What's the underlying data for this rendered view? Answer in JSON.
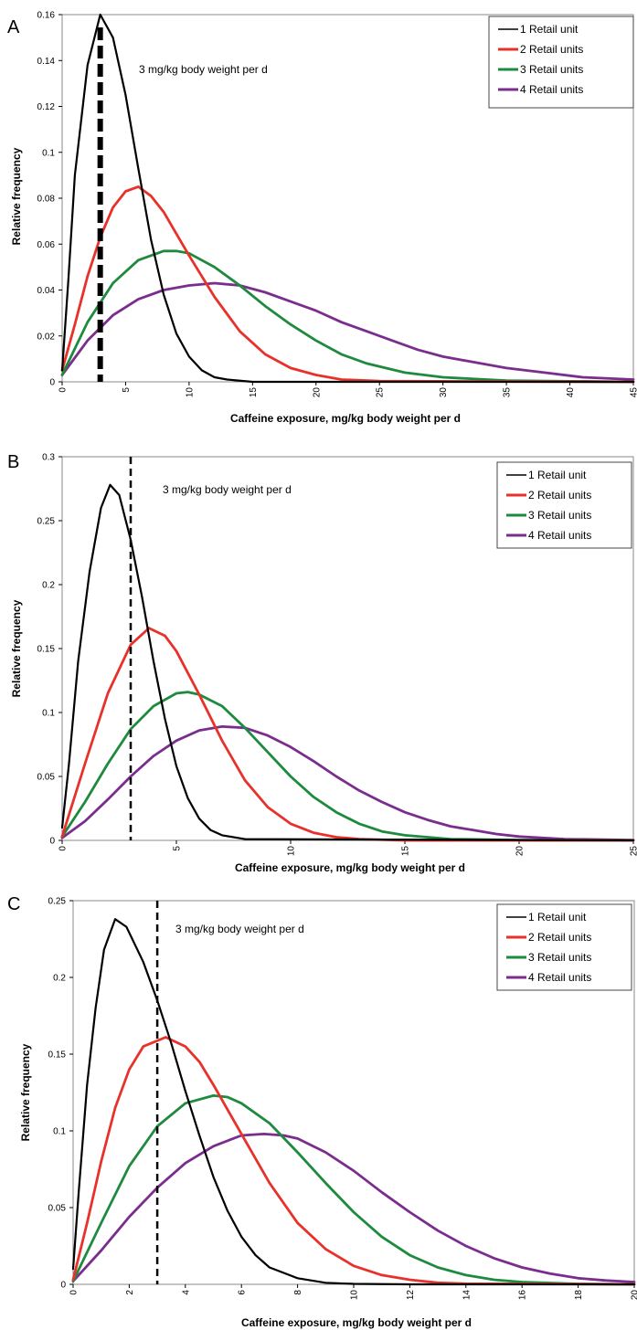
{
  "chart_data": [
    {
      "type": "line",
      "panel_label": "A",
      "ylabel": "Relative frequency",
      "xlabel": "Caffeine exposure, mg/kg body weight per d",
      "xlim": [
        0,
        45
      ],
      "ylim": [
        0,
        0.16
      ],
      "xticks": [
        "0",
        "5",
        "10",
        "15",
        "20",
        "25",
        "30",
        "35",
        "40",
        "45"
      ],
      "yticks": [
        "0",
        "0.02",
        "0.04",
        "0.06",
        "0.08",
        "0.1",
        "0.12",
        "0.14",
        "0.16"
      ],
      "grid": false,
      "legend_position": "top-right",
      "annotation": "3 mg/kg body weight per d",
      "reference_line_x": 3,
      "series": [
        {
          "name": "1 Retail unit",
          "color": "#000000",
          "points": [
            [
              0,
              0.005
            ],
            [
              0.5,
              0.045
            ],
            [
              1,
              0.09
            ],
            [
              2,
              0.138
            ],
            [
              3,
              0.16
            ],
            [
              4,
              0.15
            ],
            [
              5,
              0.125
            ],
            [
              6,
              0.093
            ],
            [
              7,
              0.062
            ],
            [
              8,
              0.038
            ],
            [
              9,
              0.021
            ],
            [
              10,
              0.011
            ],
            [
              11,
              0.005
            ],
            [
              12,
              0.002
            ],
            [
              13,
              0.001
            ],
            [
              15,
              0
            ],
            [
              45,
              0
            ]
          ]
        },
        {
          "name": "2 Retail units",
          "color": "#e8312a",
          "points": [
            [
              0,
              0.005
            ],
            [
              1,
              0.025
            ],
            [
              2,
              0.046
            ],
            [
              3,
              0.063
            ],
            [
              4,
              0.076
            ],
            [
              5,
              0.083
            ],
            [
              6,
              0.085
            ],
            [
              7,
              0.081
            ],
            [
              8,
              0.074
            ],
            [
              10,
              0.055
            ],
            [
              12,
              0.037
            ],
            [
              14,
              0.022
            ],
            [
              16,
              0.012
            ],
            [
              18,
              0.006
            ],
            [
              20,
              0.003
            ],
            [
              22,
              0.001
            ],
            [
              25,
              0.0003
            ],
            [
              45,
              0
            ]
          ]
        },
        {
          "name": "3 Retail units",
          "color": "#1e8a3e",
          "points": [
            [
              0,
              0.003
            ],
            [
              2,
              0.026
            ],
            [
              4,
              0.043
            ],
            [
              6,
              0.053
            ],
            [
              8,
              0.057
            ],
            [
              9,
              0.057
            ],
            [
              10,
              0.056
            ],
            [
              12,
              0.05
            ],
            [
              14,
              0.042
            ],
            [
              16,
              0.033
            ],
            [
              18,
              0.025
            ],
            [
              20,
              0.018
            ],
            [
              22,
              0.012
            ],
            [
              24,
              0.008
            ],
            [
              27,
              0.004
            ],
            [
              30,
              0.002
            ],
            [
              35,
              0.0005
            ],
            [
              45,
              0
            ]
          ]
        },
        {
          "name": "4 Retail units",
          "color": "#7b2d8e",
          "points": [
            [
              0,
              0.003
            ],
            [
              2,
              0.018
            ],
            [
              4,
              0.029
            ],
            [
              6,
              0.036
            ],
            [
              8,
              0.04
            ],
            [
              10,
              0.042
            ],
            [
              12,
              0.043
            ],
            [
              14,
              0.042
            ],
            [
              16,
              0.039
            ],
            [
              18,
              0.035
            ],
            [
              20,
              0.031
            ],
            [
              22,
              0.026
            ],
            [
              24,
              0.022
            ],
            [
              26,
              0.018
            ],
            [
              28,
              0.014
            ],
            [
              30,
              0.011
            ],
            [
              32,
              0.009
            ],
            [
              35,
              0.006
            ],
            [
              38,
              0.004
            ],
            [
              41,
              0.002
            ],
            [
              45,
              0.001
            ]
          ]
        }
      ]
    },
    {
      "type": "line",
      "panel_label": "B",
      "ylabel": "Relative frequency",
      "xlabel": "Caffeine exposure, mg/kg body weight per d",
      "xlim": [
        0,
        25
      ],
      "ylim": [
        0,
        0.3
      ],
      "xticks": [
        "0",
        "5",
        "10",
        "15",
        "20",
        "25"
      ],
      "yticks": [
        "0",
        "0.05",
        "0.1",
        "0.15",
        "0.2",
        "0.25",
        "0.3"
      ],
      "grid": false,
      "legend_position": "top-right",
      "annotation": "3 mg/kg body weight per d",
      "reference_line_x": 3,
      "series": [
        {
          "name": "1 Retail unit",
          "color": "#000000",
          "points": [
            [
              0,
              0.01
            ],
            [
              0.3,
              0.06
            ],
            [
              0.7,
              0.14
            ],
            [
              1.2,
              0.21
            ],
            [
              1.7,
              0.26
            ],
            [
              2.1,
              0.278
            ],
            [
              2.5,
              0.27
            ],
            [
              3,
              0.235
            ],
            [
              3.5,
              0.19
            ],
            [
              4,
              0.14
            ],
            [
              4.5,
              0.095
            ],
            [
              5,
              0.058
            ],
            [
              5.5,
              0.033
            ],
            [
              6,
              0.017
            ],
            [
              6.5,
              0.008
            ],
            [
              7,
              0.004
            ],
            [
              8,
              0.001
            ],
            [
              25,
              0
            ]
          ]
        },
        {
          "name": "2 Retail units",
          "color": "#e8312a",
          "points": [
            [
              0,
              0.003
            ],
            [
              1,
              0.06
            ],
            [
              2,
              0.115
            ],
            [
              3,
              0.153
            ],
            [
              3.8,
              0.166
            ],
            [
              4.5,
              0.16
            ],
            [
              5,
              0.148
            ],
            [
              6,
              0.114
            ],
            [
              7,
              0.078
            ],
            [
              8,
              0.047
            ],
            [
              9,
              0.026
            ],
            [
              10,
              0.013
            ],
            [
              11,
              0.006
            ],
            [
              12,
              0.0025
            ],
            [
              13,
              0.001
            ],
            [
              15,
              0
            ],
            [
              25,
              0
            ]
          ]
        },
        {
          "name": "3 Retail units",
          "color": "#1e8a3e",
          "points": [
            [
              0,
              0.003
            ],
            [
              1,
              0.03
            ],
            [
              2,
              0.06
            ],
            [
              3,
              0.087
            ],
            [
              4,
              0.105
            ],
            [
              5,
              0.115
            ],
            [
              5.5,
              0.116
            ],
            [
              6,
              0.114
            ],
            [
              7,
              0.105
            ],
            [
              8,
              0.088
            ],
            [
              9,
              0.069
            ],
            [
              10,
              0.05
            ],
            [
              11,
              0.034
            ],
            [
              12,
              0.022
            ],
            [
              13,
              0.013
            ],
            [
              14,
              0.007
            ],
            [
              15,
              0.004
            ],
            [
              17,
              0.001
            ],
            [
              20,
              0.0002
            ],
            [
              25,
              0
            ]
          ]
        },
        {
          "name": "4 Retail units",
          "color": "#7b2d8e",
          "points": [
            [
              0,
              0.002
            ],
            [
              1,
              0.015
            ],
            [
              2,
              0.032
            ],
            [
              3,
              0.05
            ],
            [
              4,
              0.066
            ],
            [
              5,
              0.078
            ],
            [
              6,
              0.086
            ],
            [
              7,
              0.089
            ],
            [
              8,
              0.088
            ],
            [
              9,
              0.082
            ],
            [
              10,
              0.073
            ],
            [
              11,
              0.062
            ],
            [
              12,
              0.05
            ],
            [
              13,
              0.039
            ],
            [
              14,
              0.03
            ],
            [
              15,
              0.022
            ],
            [
              16,
              0.016
            ],
            [
              17,
              0.011
            ],
            [
              18,
              0.008
            ],
            [
              19,
              0.005
            ],
            [
              20,
              0.003
            ],
            [
              22,
              0.001
            ],
            [
              25,
              0.0003
            ]
          ]
        }
      ]
    },
    {
      "type": "line",
      "panel_label": "C",
      "ylabel": "Relative frequency",
      "xlabel": "Caffeine exposure, mg/kg body weight per d",
      "xlim": [
        0,
        20
      ],
      "ylim": [
        0,
        0.25
      ],
      "xticks": [
        "0",
        "2",
        "4",
        "6",
        "8",
        "10",
        "12",
        "14",
        "16",
        "18",
        "20"
      ],
      "yticks": [
        "0",
        "0.05",
        "0.1",
        "0.15",
        "0.2",
        "0.25"
      ],
      "grid": false,
      "legend_position": "top-right",
      "annotation": "3 mg/kg body weight per d",
      "reference_line_x": 3,
      "series": [
        {
          "name": "1 Retail unit",
          "color": "#000000",
          "points": [
            [
              0,
              0.01
            ],
            [
              0.2,
              0.06
            ],
            [
              0.5,
              0.13
            ],
            [
              0.8,
              0.18
            ],
            [
              1.1,
              0.218
            ],
            [
              1.5,
              0.238
            ],
            [
              1.9,
              0.233
            ],
            [
              2.5,
              0.21
            ],
            [
              3,
              0.185
            ],
            [
              3.5,
              0.157
            ],
            [
              4,
              0.126
            ],
            [
              4.5,
              0.097
            ],
            [
              5,
              0.07
            ],
            [
              5.5,
              0.048
            ],
            [
              6,
              0.031
            ],
            [
              6.5,
              0.019
            ],
            [
              7,
              0.011
            ],
            [
              8,
              0.004
            ],
            [
              9,
              0.001
            ],
            [
              10,
              0.0003
            ],
            [
              12,
              0
            ],
            [
              20,
              0
            ]
          ]
        },
        {
          "name": "2 Retail units",
          "color": "#e8312a",
          "points": [
            [
              0,
              0.003
            ],
            [
              0.5,
              0.04
            ],
            [
              1,
              0.08
            ],
            [
              1.5,
              0.115
            ],
            [
              2,
              0.14
            ],
            [
              2.5,
              0.155
            ],
            [
              3.3,
              0.161
            ],
            [
              4,
              0.155
            ],
            [
              4.5,
              0.145
            ],
            [
              5,
              0.13
            ],
            [
              6,
              0.098
            ],
            [
              7,
              0.066
            ],
            [
              8,
              0.04
            ],
            [
              9,
              0.023
            ],
            [
              10,
              0.012
            ],
            [
              11,
              0.006
            ],
            [
              12,
              0.003
            ],
            [
              13,
              0.001
            ],
            [
              14,
              0.0004
            ],
            [
              20,
              0
            ]
          ]
        },
        {
          "name": "3 Retail units",
          "color": "#1e8a3e",
          "points": [
            [
              0,
              0.002
            ],
            [
              1,
              0.04
            ],
            [
              2,
              0.077
            ],
            [
              3,
              0.103
            ],
            [
              4,
              0.118
            ],
            [
              5,
              0.123
            ],
            [
              5.5,
              0.122
            ],
            [
              6,
              0.118
            ],
            [
              7,
              0.105
            ],
            [
              8,
              0.086
            ],
            [
              9,
              0.066
            ],
            [
              10,
              0.047
            ],
            [
              11,
              0.031
            ],
            [
              12,
              0.019
            ],
            [
              13,
              0.011
            ],
            [
              14,
              0.006
            ],
            [
              15,
              0.003
            ],
            [
              16,
              0.0015
            ],
            [
              18,
              0.0003
            ],
            [
              20,
              0
            ]
          ]
        },
        {
          "name": "4 Retail units",
          "color": "#7b2d8e",
          "points": [
            [
              0,
              0.002
            ],
            [
              1,
              0.022
            ],
            [
              2,
              0.044
            ],
            [
              3,
              0.063
            ],
            [
              4,
              0.079
            ],
            [
              5,
              0.09
            ],
            [
              6,
              0.097
            ],
            [
              6.8,
              0.098
            ],
            [
              7.5,
              0.097
            ],
            [
              8,
              0.095
            ],
            [
              9,
              0.086
            ],
            [
              10,
              0.074
            ],
            [
              11,
              0.06
            ],
            [
              12,
              0.047
            ],
            [
              13,
              0.035
            ],
            [
              14,
              0.025
            ],
            [
              15,
              0.017
            ],
            [
              16,
              0.011
            ],
            [
              17,
              0.007
            ],
            [
              18,
              0.004
            ],
            [
              19,
              0.0025
            ],
            [
              20,
              0.0015
            ]
          ]
        }
      ]
    }
  ]
}
